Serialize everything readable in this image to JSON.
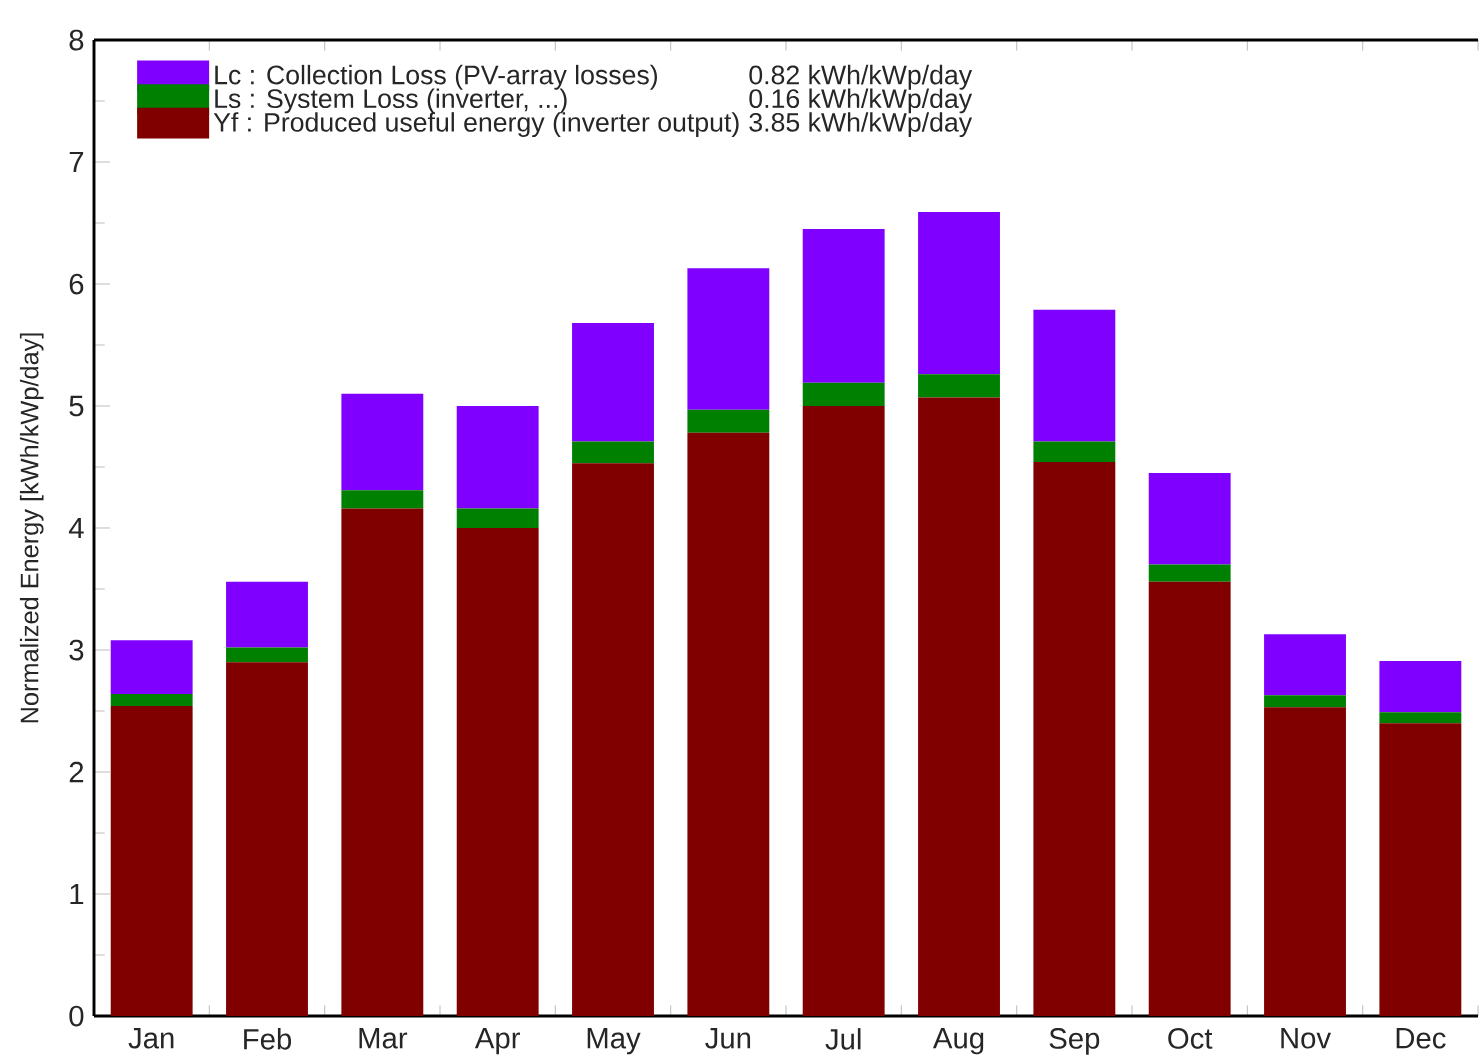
{
  "chart_data": {
    "type": "bar",
    "stacked": true,
    "ylabel": "Normalized Energy [kWh/kWp/day]",
    "categories": [
      "Jan",
      "Feb",
      "Mar",
      "Apr",
      "May",
      "Jun",
      "Jul",
      "Aug",
      "Sep",
      "Oct",
      "Nov",
      "Dec"
    ],
    "series": [
      {
        "name": "Yf : Produced useful energy  (inverter output)",
        "color": "#800000",
        "values": [
          2.54,
          2.9,
          4.16,
          4.0,
          4.53,
          4.78,
          5.0,
          5.07,
          4.54,
          3.56,
          2.53,
          2.4
        ]
      },
      {
        "name": "Ls : System Loss  (inverter, ...)",
        "color": "#008000",
        "values": [
          0.1,
          0.12,
          0.15,
          0.16,
          0.18,
          0.19,
          0.19,
          0.19,
          0.17,
          0.14,
          0.1,
          0.09
        ]
      },
      {
        "name": "Lc : Collection Loss (PV-array losses)",
        "color": "#8000ff",
        "values": [
          0.44,
          0.54,
          0.79,
          0.84,
          0.97,
          1.16,
          1.26,
          1.33,
          1.08,
          0.75,
          0.5,
          0.42
        ]
      }
    ],
    "annotations": [
      "0.82 kWh/kWp/day",
      "0.16 kWh/kWp/day",
      "3.85 kWh/kWp/day"
    ],
    "ylim": [
      0,
      8
    ],
    "yticks": [
      0,
      1,
      2,
      3,
      4,
      5,
      6,
      7,
      8
    ],
    "grid": false,
    "legend": "top left"
  }
}
